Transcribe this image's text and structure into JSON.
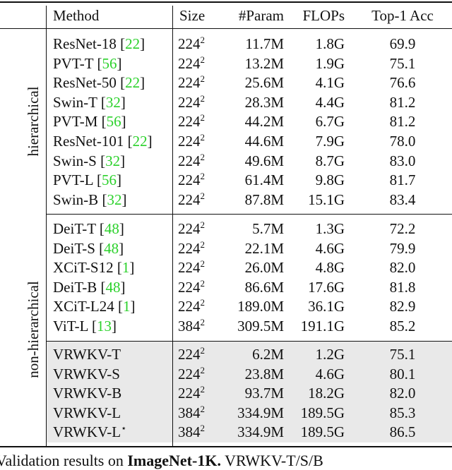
{
  "header": {
    "method": "Method",
    "size": "Size",
    "params": "#Param",
    "flops": "FLOPs",
    "top1": "Top-1 Acc"
  },
  "groups": [
    {
      "label": "hierarchical",
      "rows": [
        {
          "method": "ResNet-18",
          "cite": "22",
          "size": "224",
          "exp": "2",
          "params": "11.7M",
          "flops": "1.8G",
          "top1": "69.9"
        },
        {
          "method": "PVT-T",
          "cite": "56",
          "size": "224",
          "exp": "2",
          "params": "13.2M",
          "flops": "1.9G",
          "top1": "75.1"
        },
        {
          "method": "ResNet-50",
          "cite": "22",
          "size": "224",
          "exp": "2",
          "params": "25.6M",
          "flops": "4.1G",
          "top1": "76.6"
        },
        {
          "method": "Swin-T",
          "cite": "32",
          "size": "224",
          "exp": "2",
          "params": "28.3M",
          "flops": "4.4G",
          "top1": "81.2"
        },
        {
          "method": "PVT-M",
          "cite": "56",
          "size": "224",
          "exp": "2",
          "params": "44.2M",
          "flops": "6.7G",
          "top1": "81.2"
        },
        {
          "method": "ResNet-101",
          "cite": "22",
          "size": "224",
          "exp": "2",
          "params": "44.6M",
          "flops": "7.9G",
          "top1": "78.0"
        },
        {
          "method": "Swin-S",
          "cite": "32",
          "size": "224",
          "exp": "2",
          "params": "49.6M",
          "flops": "8.7G",
          "top1": "83.0"
        },
        {
          "method": "PVT-L",
          "cite": "56",
          "size": "224",
          "exp": "2",
          "params": "61.4M",
          "flops": "9.8G",
          "top1": "81.7"
        },
        {
          "method": "Swin-B",
          "cite": "32",
          "size": "224",
          "exp": "2",
          "params": "87.8M",
          "flops": "15.1G",
          "top1": "83.4"
        }
      ]
    },
    {
      "label": "non-hierarchical",
      "rows": [
        {
          "method": "DeiT-T",
          "cite": "48",
          "size": "224",
          "exp": "2",
          "params": "5.7M",
          "flops": "1.3G",
          "top1": "72.2"
        },
        {
          "method": "DeiT-S",
          "cite": "48",
          "size": "224",
          "exp": "2",
          "params": "22.1M",
          "flops": "4.6G",
          "top1": "79.9"
        },
        {
          "method": "XCiT-S12",
          "cite": "1",
          "size": "224",
          "exp": "2",
          "params": "26.0M",
          "flops": "4.8G",
          "top1": "82.0"
        },
        {
          "method": "DeiT-B",
          "cite": "48",
          "size": "224",
          "exp": "2",
          "params": "86.6M",
          "flops": "17.6G",
          "top1": "81.8"
        },
        {
          "method": "XCiT-L24",
          "cite": "1",
          "size": "224",
          "exp": "2",
          "params": "189.0M",
          "flops": "36.1G",
          "top1": "82.9"
        },
        {
          "method": "ViT-L",
          "cite": "13",
          "size": "384",
          "exp": "2",
          "params": "309.5M",
          "flops": "191.1G",
          "top1": "85.2"
        }
      ],
      "ours": [
        {
          "method": "VRWKV-T",
          "size": "224",
          "exp": "2",
          "params": "6.2M",
          "flops": "1.2G",
          "top1": "75.1"
        },
        {
          "method": "VRWKV-S",
          "size": "224",
          "exp": "2",
          "params": "23.8M",
          "flops": "4.6G",
          "top1": "80.1"
        },
        {
          "method": "VRWKV-B",
          "size": "224",
          "exp": "2",
          "params": "93.7M",
          "flops": "18.2G",
          "top1": "82.0"
        },
        {
          "method": "VRWKV-L",
          "size": "384",
          "exp": "2",
          "params": "334.9M",
          "flops": "189.5G",
          "top1": "85.3"
        },
        {
          "method": "VRWKV-L",
          "mark": "⋆",
          "size": "384",
          "exp": "2",
          "params": "334.9M",
          "flops": "189.5G",
          "top1": "86.5"
        }
      ]
    }
  ],
  "caption": {
    "lead": "Validation results on",
    "dataset": "ImageNet-1K.",
    "tail": "VRWKV-T/S/B"
  }
}
